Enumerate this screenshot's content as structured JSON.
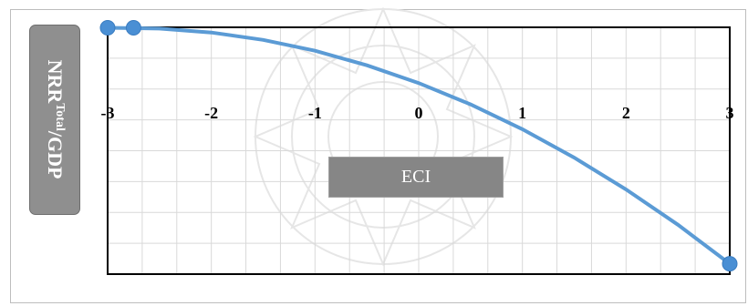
{
  "chart_data": {
    "type": "line",
    "xlabel": "ECI",
    "ylabel": {
      "main": "NRR",
      "sup": "Total",
      "suffix": "/GDP"
    },
    "xlim": [
      -3,
      3
    ],
    "x_ticks": [
      -3,
      -2,
      -1,
      0,
      1,
      2,
      3
    ],
    "x_tick_labels": [
      "-3",
      "-2",
      "-1",
      "0",
      "1",
      "2",
      "3"
    ],
    "y_gridlines": 8,
    "x_gridlines": 18,
    "grid": true,
    "curve": {
      "x": [
        -3,
        -2.5,
        -2,
        -1.5,
        -1,
        -0.5,
        0,
        0.5,
        1,
        1.5,
        2,
        2.5,
        3
      ],
      "y": [
        0.02,
        0.05,
        0.21,
        0.51,
        0.95,
        1.54,
        2.26,
        3.12,
        4.13,
        5.28,
        6.57,
        8.0,
        9.58
      ]
    },
    "points": [
      {
        "x": -3,
        "y": 0.02
      },
      {
        "x": -2.75,
        "y": 0.02
      },
      {
        "x": 3,
        "y": 9.58
      }
    ],
    "y_range": [
      0,
      10
    ],
    "line_color": "#5b9bd5",
    "marker_color": "#4a8fd4"
  }
}
